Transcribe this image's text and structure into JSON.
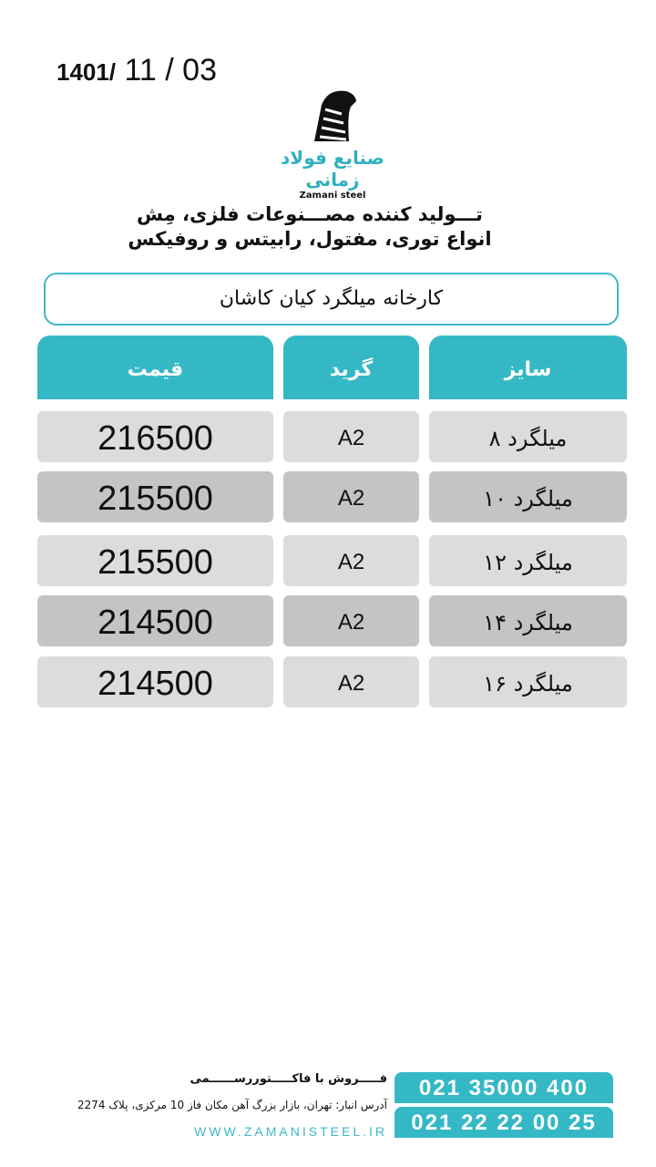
{
  "date": {
    "year": "1401",
    "month": "11",
    "day": "03"
  },
  "brand": {
    "name_fa": "صنایع فولاد زمانی",
    "name_en": "Zamani steel"
  },
  "tagline": [
    "تـــولید کننده مصـــنوعات فلزی، مِش",
    "انواع توری، مفتول، رابیتس و روفیکس"
  ],
  "factory": "کارخانه میلگرد کیان کاشان",
  "table": {
    "headers": {
      "price": "قیمت",
      "grade": "گرید",
      "size": "سایز"
    },
    "rows": [
      {
        "size": "میلگرد ۸",
        "grade": "A2",
        "price": "216500"
      },
      {
        "size": "میلگرد ۱۰",
        "grade": "A2",
        "price": "215500"
      },
      {
        "size": "میلگرد ۱۲",
        "grade": "A2",
        "price": "215500"
      },
      {
        "size": "میلگرد ۱۴",
        "grade": "A2",
        "price": "214500"
      },
      {
        "size": "میلگرد ۱۶",
        "grade": "A2",
        "price": "214500"
      }
    ]
  },
  "footer": {
    "sale": "فـــــروش با فاکـــــتوررســــــمی",
    "address": "آدرس انبار: تهران، بازار بزرگ آهن مکان فاز 10 مرکزی، پلاک 2274",
    "website": "WWW.ZAMANISTEEL.IR",
    "phones": [
      "021 35000 400",
      "021 22 22 00 25"
    ]
  },
  "colors": {
    "accent": "#35b8c6",
    "row_light": "#dcdcdc",
    "row_dark": "#c4c4c4"
  }
}
